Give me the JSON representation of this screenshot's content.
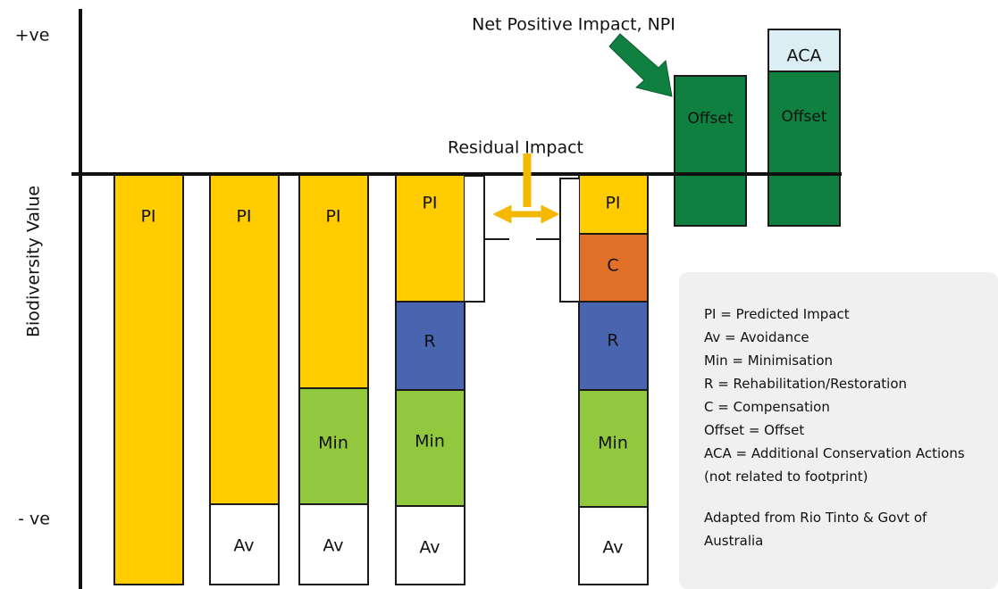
{
  "axis": {
    "top_label": "+ve",
    "bottom_label": "- ve",
    "title": "Biodiversity Value"
  },
  "annotations": {
    "npi": "Net Positive Impact, NPI",
    "residual": "Residual Impact"
  },
  "columns": [
    {
      "segments": [
        "PI"
      ]
    },
    {
      "segments": [
        "PI",
        "Av"
      ]
    },
    {
      "segments": [
        "PI",
        "Min",
        "Av"
      ]
    },
    {
      "segments": [
        "PI",
        "R",
        "Min",
        "Av"
      ]
    },
    {
      "segments": [
        "PI",
        "C",
        "R",
        "Min",
        "Av"
      ]
    },
    {
      "segments": [
        "Offset"
      ]
    },
    {
      "segments": [
        "ACA",
        "Offset"
      ]
    }
  ],
  "legend": {
    "items": [
      "PI = Predicted Impact",
      "Av = Avoidance",
      "Min = Minimisation",
      "R =  Rehabilitation/Restoration",
      "C =  Compensation",
      "Offset = Offset",
      "ACA = Additional Conservation Actions (not related to footprint)"
    ],
    "source": "Adapted from Rio Tinto & Govt of Australia"
  }
}
